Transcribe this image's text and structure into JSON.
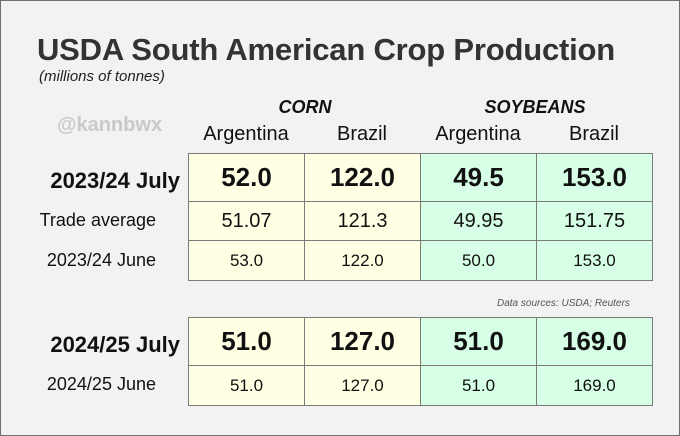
{
  "title": "USDA South American Crop Production",
  "subtitle": "(millions of tonnes)",
  "watermark": "@kannbwx",
  "sources": "Data sources: USDA; Reuters",
  "chart_data": {
    "type": "table",
    "groups": [
      "CORN",
      "SOYBEANS"
    ],
    "columns": [
      "Argentina",
      "Brazil",
      "Argentina",
      "Brazil"
    ],
    "rows": [
      {
        "label": "2023/24 July",
        "values": [
          "52.0",
          "122.0",
          "49.5",
          "153.0"
        ]
      },
      {
        "label": "Trade average",
        "values": [
          "51.07",
          "121.3",
          "49.95",
          "151.75"
        ]
      },
      {
        "label": "2023/24 June",
        "values": [
          "53.0",
          "122.0",
          "50.0",
          "153.0"
        ]
      },
      {
        "label": "2024/25 July",
        "values": [
          "51.0",
          "127.0",
          "51.0",
          "169.0"
        ]
      },
      {
        "label": "2024/25 June",
        "values": [
          "51.0",
          "127.0",
          "51.0",
          "169.0"
        ]
      }
    ]
  },
  "colors": {
    "corn_fill": "#ffffe3",
    "soybean_fill": "#d6ffe6",
    "border": "#7a7a7a",
    "title": "#333333",
    "watermark": "#c9c9c9"
  }
}
